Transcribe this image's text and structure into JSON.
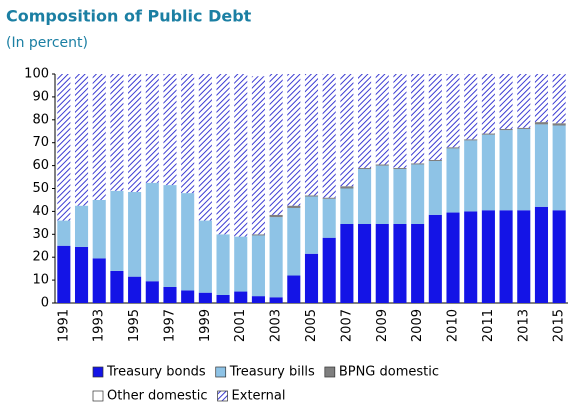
{
  "chart_data": {
    "type": "stacked_bar",
    "title": "Composition of Public Debt",
    "subtitle": "(In percent)",
    "categories": [
      "1991",
      null,
      "1993",
      null,
      "1995",
      null,
      "1997",
      null,
      "1999",
      null,
      "2001",
      null,
      "2003",
      null,
      "2005",
      null,
      "2007",
      null,
      "2009",
      null,
      "2009",
      null,
      "2010",
      null,
      "2011",
      null,
      "2013",
      null,
      "2015"
    ],
    "series": [
      {
        "name": "Treasury bonds",
        "color": "#1414e6",
        "values": [
          25,
          24.5,
          19.5,
          14,
          11.5,
          9.5,
          7,
          5.5,
          4.5,
          3.5,
          5,
          3,
          2.5,
          12,
          21.5,
          28.5,
          34.5,
          34.5,
          34.5,
          34.5,
          34.5,
          38.5,
          39.5,
          40,
          40.5,
          40.5,
          40.5,
          42,
          40.5
        ]
      },
      {
        "name": "Treasury bills",
        "color": "#8ec3e6",
        "values": [
          11,
          18,
          25.5,
          35,
          37,
          43,
          44.5,
          42.5,
          31.5,
          26.5,
          24,
          26.5,
          35,
          29.5,
          25,
          17,
          15.5,
          24,
          25.5,
          24,
          26,
          23.5,
          28,
          31,
          33,
          35,
          35.5,
          36,
          37
        ]
      },
      {
        "name": "BPNG domestic",
        "color": "#7f7f7f",
        "values": [
          0,
          0,
          0,
          0,
          0,
          0,
          0,
          0,
          0,
          0,
          0,
          0.5,
          1,
          1,
          0.5,
          0.5,
          1,
          0.5,
          0.5,
          0.5,
          0.5,
          0.5,
          0.5,
          0.5,
          0.5,
          0.5,
          0.5,
          1,
          1
        ]
      },
      {
        "name": "Other domestic",
        "color": "#ffffff",
        "values": [
          0,
          0,
          0,
          0,
          0,
          0,
          0,
          0,
          0,
          0,
          0,
          0,
          0,
          0,
          0,
          0,
          0,
          0,
          0,
          0,
          0,
          0,
          0,
          0,
          0,
          0,
          0,
          0,
          0
        ]
      },
      {
        "name": "External",
        "color": "#3c3cd2",
        "values": [
          64,
          57.5,
          55,
          51,
          51.5,
          47.5,
          48.5,
          52,
          64,
          70,
          71,
          69,
          61.5,
          57.5,
          53,
          54,
          49,
          41,
          39.5,
          41,
          39,
          37.5,
          32,
          28.5,
          26,
          24,
          23.5,
          21,
          21.5
        ]
      }
    ],
    "ylim": [
      0,
      100
    ],
    "yticks": [
      0,
      10,
      20,
      30,
      40,
      50,
      60,
      70,
      80,
      90,
      100
    ]
  }
}
